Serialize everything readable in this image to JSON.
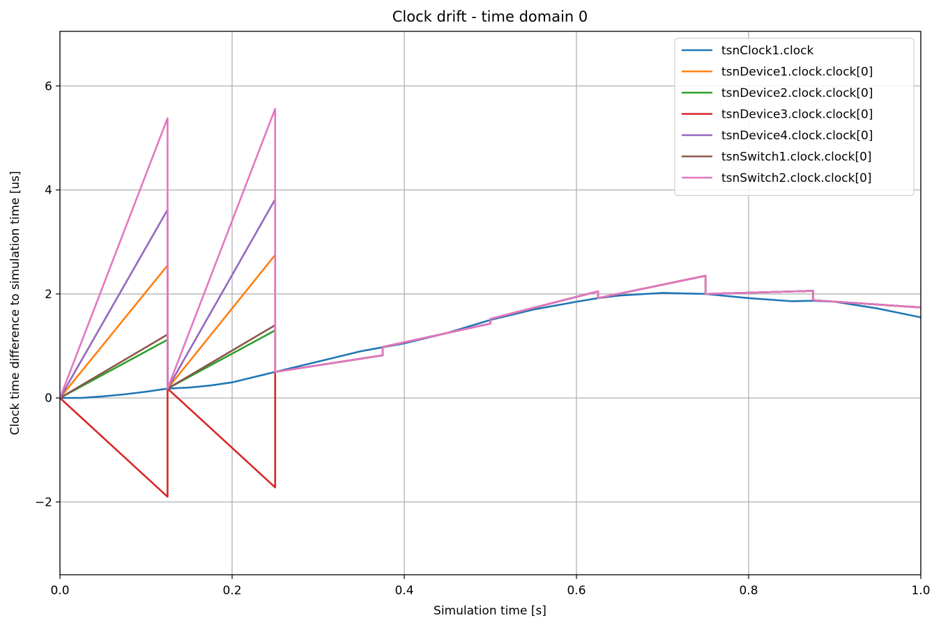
{
  "chart_data": {
    "type": "line",
    "title": "Clock drift - time domain 0",
    "xlabel": "Simulation time [s]",
    "ylabel": "Clock time difference to simulation time [us]",
    "xlim": [
      0.0,
      1.0
    ],
    "ylim": [
      -3.4,
      7.05
    ],
    "xticks": [
      0.0,
      0.2,
      0.4,
      0.6,
      0.8,
      1.0
    ],
    "xtick_labels": [
      "0.0",
      "0.2",
      "0.4",
      "0.6",
      "0.8",
      "1.0"
    ],
    "yticks": [
      -2,
      0,
      2,
      4,
      6
    ],
    "ytick_labels": [
      "−2",
      "0",
      "2",
      "4",
      "6"
    ],
    "grid": true,
    "legend_position": "top-right",
    "series": [
      {
        "name": "tsnClock1.clock",
        "color": "#1f77b4",
        "x": [
          0,
          0.025,
          0.05,
          0.075,
          0.1,
          0.125,
          0.15,
          0.175,
          0.2,
          0.225,
          0.25,
          0.3,
          0.35,
          0.4,
          0.45,
          0.5,
          0.55,
          0.6,
          0.625,
          0.65,
          0.7,
          0.75,
          0.8,
          0.85,
          0.875,
          0.9,
          0.95,
          1.0
        ],
        "y": [
          0,
          0.0,
          0.03,
          0.07,
          0.12,
          0.18,
          0.2,
          0.24,
          0.3,
          0.4,
          0.5,
          0.7,
          0.9,
          1.05,
          1.25,
          1.5,
          1.7,
          1.85,
          1.92,
          1.97,
          2.02,
          2.0,
          1.92,
          1.86,
          1.87,
          1.85,
          1.72,
          1.55
        ]
      },
      {
        "name": "tsnDevice1.clock.clock[0]",
        "color": "#ff7f0e",
        "x": [
          0,
          0.125,
          0.125,
          0.25,
          0.25,
          0.375,
          0.375,
          0.5,
          0.5,
          0.625,
          0.625,
          0.75,
          0.75,
          0.875,
          0.875,
          1.0
        ],
        "y": [
          0,
          2.55,
          0.18,
          2.75,
          0.5,
          0.82,
          0.98,
          1.43,
          1.52,
          2.05,
          1.92,
          2.35,
          2.0,
          2.06,
          1.88,
          1.74
        ]
      },
      {
        "name": "tsnDevice2.clock.clock[0]",
        "color": "#2ca02c",
        "x": [
          0,
          0.125,
          0.125,
          0.25,
          0.25,
          0.375,
          0.375,
          0.5,
          0.5,
          0.625,
          0.625,
          0.75,
          0.75,
          0.875,
          0.875,
          1.0
        ],
        "y": [
          0,
          1.12,
          0.18,
          1.3,
          0.5,
          0.82,
          0.98,
          1.43,
          1.52,
          2.05,
          1.92,
          2.35,
          2.0,
          2.06,
          1.88,
          1.74
        ]
      },
      {
        "name": "tsnDevice3.clock.clock[0]",
        "color": "#d62728",
        "x": [
          0,
          0.125,
          0.125,
          0.25,
          0.25,
          0.375,
          0.375,
          0.5,
          0.5,
          0.625,
          0.625,
          0.75,
          0.75,
          0.875,
          0.875,
          1.0
        ],
        "y": [
          0,
          -1.9,
          0.18,
          -1.72,
          0.5,
          0.82,
          0.98,
          1.43,
          1.52,
          2.05,
          1.92,
          2.35,
          2.0,
          2.06,
          1.88,
          1.74
        ]
      },
      {
        "name": "tsnDevice4.clock.clock[0]",
        "color": "#9467bd",
        "x": [
          0,
          0.125,
          0.125,
          0.25,
          0.25,
          0.375,
          0.375,
          0.5,
          0.5,
          0.625,
          0.625,
          0.75,
          0.75,
          0.875,
          0.875,
          1.0
        ],
        "y": [
          0,
          3.62,
          0.18,
          3.82,
          0.5,
          0.82,
          0.98,
          1.43,
          1.52,
          2.05,
          1.92,
          2.35,
          2.0,
          2.06,
          1.88,
          1.74
        ]
      },
      {
        "name": "tsnSwitch1.clock.clock[0]",
        "color": "#8c564b",
        "x": [
          0,
          0.125,
          0.125,
          0.25,
          0.25,
          0.375,
          0.375,
          0.5,
          0.5,
          0.625,
          0.625,
          0.75,
          0.75,
          0.875,
          0.875,
          1.0
        ],
        "y": [
          0,
          1.22,
          0.18,
          1.4,
          0.5,
          0.82,
          0.98,
          1.43,
          1.52,
          2.05,
          1.92,
          2.35,
          2.0,
          2.06,
          1.88,
          1.74
        ]
      },
      {
        "name": "tsnSwitch2.clock.clock[0]",
        "color": "#e377c2",
        "x": [
          0,
          0.125,
          0.125,
          0.25,
          0.25,
          0.375,
          0.375,
          0.5,
          0.5,
          0.625,
          0.625,
          0.75,
          0.75,
          0.875,
          0.875,
          1.0
        ],
        "y": [
          0,
          5.38,
          0.18,
          5.56,
          0.5,
          0.82,
          0.98,
          1.43,
          1.52,
          2.05,
          1.92,
          2.35,
          2.0,
          2.06,
          1.88,
          1.74
        ]
      }
    ]
  }
}
